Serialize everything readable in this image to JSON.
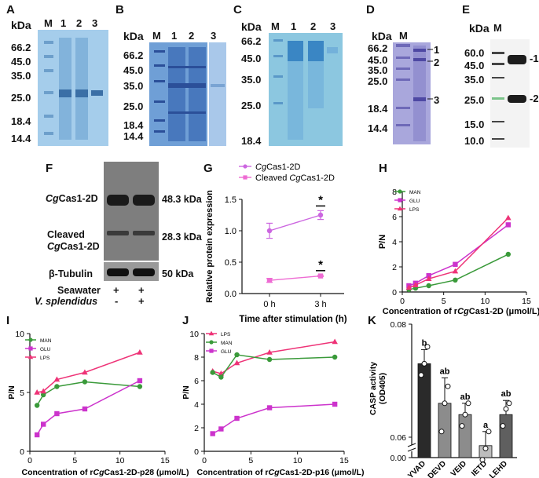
{
  "panels": {
    "A": {
      "label": "A",
      "kda": "kDa",
      "lanes": [
        "M",
        "1",
        "2",
        "3"
      ],
      "markers": [
        "66.2",
        "45.0",
        "35.0",
        "25.0",
        "18.4",
        "14.4"
      ]
    },
    "B": {
      "label": "B",
      "kda": "kDa",
      "lanes": [
        "M",
        "1",
        "2",
        "3"
      ],
      "markers": [
        "66.2",
        "45.0",
        "35.0",
        "25.0",
        "18.4",
        "14.4"
      ]
    },
    "C": {
      "label": "C",
      "kda": "kDa",
      "lanes": [
        "M",
        "1",
        "2",
        "3"
      ],
      "markers": [
        "66.2",
        "45.0",
        "35.0",
        "25.0",
        "18.4"
      ]
    },
    "D": {
      "label": "D",
      "kda": "kDa",
      "lanes": [
        "M"
      ],
      "markers": [
        "66.2",
        "45.0",
        "35.0",
        "25.0",
        "18.4",
        "14.4"
      ],
      "bands": [
        "1",
        "2",
        "3"
      ]
    },
    "E": {
      "label": "E",
      "kda": "kDa",
      "lanes": [
        "M"
      ],
      "markers": [
        "60.0",
        "45.0",
        "35.0",
        "25.0",
        "15.0",
        "10.0"
      ],
      "bands": [
        "-1",
        "-2"
      ]
    },
    "F": {
      "label": "F",
      "rows": [
        {
          "name_italic": "Cg",
          "name_rest": "Cas1-2D",
          "size": "48.3 kDa"
        },
        {
          "name_line1": "Cleaved",
          "name_line2_italic": "Cg",
          "name_line2_rest": "Cas1-2D",
          "size": "28.3 kDa"
        },
        {
          "name": "β-Tubulin",
          "size": "50 kDa"
        }
      ],
      "conditions": [
        {
          "label": "Seawater",
          "values": [
            "+",
            "+"
          ]
        },
        {
          "label": "V. splendidus",
          "values": [
            "-",
            "+"
          ]
        }
      ]
    },
    "G": {
      "label": "G"
    },
    "H": {
      "label": "H"
    },
    "I": {
      "label": "I"
    },
    "J": {
      "label": "J"
    },
    "K": {
      "label": "K"
    }
  },
  "chart_data": [
    {
      "panel": "G",
      "type": "line",
      "title": "",
      "xlabel": "Time after stimulation (h)",
      "ylabel": "Relative protein expression",
      "categories": [
        "0 h",
        "3 h"
      ],
      "ylim": [
        0,
        1.5
      ],
      "yticks": [
        "0.0",
        "0.5",
        "1.0",
        "1.5"
      ],
      "series": [
        {
          "name": "CgCas1-2D",
          "name_italic": "Cg",
          "name_rest": "Cas1-2D",
          "values": [
            1.0,
            1.25
          ],
          "errors": [
            0.12,
            0.07
          ],
          "color": "#cc66e0",
          "marker": "circle"
        },
        {
          "name": "Cleaved CgCas1-2D",
          "name_pre": "Cleaved ",
          "name_italic": "Cg",
          "name_rest": "Cas1-2D",
          "values": [
            0.21,
            0.28
          ],
          "errors": [
            0.03,
            0.01
          ],
          "color": "#ee6bd3",
          "marker": "square"
        }
      ],
      "annotations": [
        "*",
        "*"
      ]
    },
    {
      "panel": "H",
      "type": "line",
      "xlabel_pre": "Concentration of r",
      "xlabel_italic": "Cg",
      "xlabel_rest": "Cas1-2D (μmol/L)",
      "ylabel": "P/N",
      "xlim": [
        0,
        15
      ],
      "ylim": [
        0,
        8
      ],
      "xticks": [
        0,
        5,
        10,
        15
      ],
      "yticks": [
        0,
        2,
        4,
        6,
        8
      ],
      "series": [
        {
          "name": "MAN",
          "x": [
            0.8,
            1.6,
            3.2,
            6.4,
            12.8
          ],
          "values": [
            0.2,
            0.3,
            0.5,
            0.95,
            3.0
          ],
          "color": "#3a9a3a",
          "marker": "circle"
        },
        {
          "name": "GLU",
          "x": [
            0.8,
            1.6,
            3.2,
            6.4,
            12.8
          ],
          "values": [
            0.5,
            0.7,
            1.3,
            2.2,
            5.35
          ],
          "color": "#cc33cc",
          "marker": "square"
        },
        {
          "name": "LPS",
          "x": [
            0.8,
            1.6,
            3.2,
            6.4,
            12.8
          ],
          "values": [
            0.35,
            0.55,
            1.05,
            1.65,
            5.9
          ],
          "color": "#ee3377",
          "marker": "triangle"
        }
      ]
    },
    {
      "panel": "I",
      "type": "line",
      "xlabel_pre": "Concentration of r",
      "xlabel_italic": "Cg",
      "xlabel_rest": "Cas1-2D-p28 (μmol/L)",
      "ylabel": "P/N",
      "xlim": [
        0,
        15
      ],
      "ylim": [
        0,
        10
      ],
      "xticks": [
        0,
        5,
        10,
        15
      ],
      "yticks": [
        0,
        5,
        10
      ],
      "series": [
        {
          "name": "MAN",
          "x": [
            0.8,
            1.5,
            3.0,
            6.1,
            12.2
          ],
          "values": [
            3.9,
            4.8,
            5.5,
            5.9,
            5.5
          ],
          "color": "#3a9a3a",
          "marker": "circle"
        },
        {
          "name": "GLU",
          "x": [
            0.8,
            1.5,
            3.0,
            6.1,
            12.2
          ],
          "values": [
            1.4,
            2.3,
            3.2,
            3.6,
            6.0
          ],
          "color": "#cc33cc",
          "marker": "square"
        },
        {
          "name": "LPS",
          "x": [
            0.8,
            1.5,
            3.0,
            6.1,
            12.2
          ],
          "values": [
            5.0,
            5.1,
            6.1,
            6.7,
            8.4
          ],
          "color": "#ee3377",
          "marker": "triangle"
        }
      ]
    },
    {
      "panel": "J",
      "type": "line",
      "xlabel_pre": "Concentration of r",
      "xlabel_italic": "Cg",
      "xlabel_rest": "Cas1-2D-p16 (μmol/L)",
      "ylabel": "P/N",
      "xlim": [
        0,
        15
      ],
      "ylim": [
        0,
        10
      ],
      "xticks": [
        0,
        5,
        10,
        15
      ],
      "yticks": [
        0,
        2,
        4,
        6,
        8,
        10
      ],
      "series": [
        {
          "name": "LPS",
          "x": [
            0.9,
            1.8,
            3.5,
            7.0,
            14.0
          ],
          "values": [
            6.8,
            6.6,
            7.5,
            8.4,
            9.3
          ],
          "color": "#ee3377",
          "marker": "triangle"
        },
        {
          "name": "MAN",
          "x": [
            0.9,
            1.8,
            3.5,
            7.0,
            14.0
          ],
          "values": [
            6.7,
            6.3,
            8.2,
            7.8,
            8.0
          ],
          "color": "#3a9a3a",
          "marker": "circle"
        },
        {
          "name": "GLU",
          "x": [
            0.9,
            1.8,
            3.5,
            7.0,
            14.0
          ],
          "values": [
            1.5,
            1.9,
            2.8,
            3.7,
            4.0
          ],
          "color": "#cc33cc",
          "marker": "square"
        }
      ]
    },
    {
      "panel": "K",
      "type": "bar",
      "ylabel": "CASP activity (OD405)",
      "categories": [
        "YVAD",
        "DEVD",
        "VEID",
        "IETD",
        "LEHD"
      ],
      "values": [
        0.073,
        0.066,
        0.064,
        0.0585,
        0.064
      ],
      "errors": [
        0.0025,
        0.0045,
        0.002,
        0.0025,
        0.0025
      ],
      "letters": [
        "b",
        "ab",
        "ab",
        "a",
        "ab"
      ],
      "points": [
        [
          0.071,
          0.073,
          0.076
        ],
        [
          0.061,
          0.066,
          0.069
        ],
        [
          0.062,
          0.064,
          0.066
        ],
        [
          0.056,
          0.058,
          0.061
        ],
        [
          0.062,
          0.065,
          0.066
        ]
      ],
      "colors": [
        "#2a2a2a",
        "#8c8c8c",
        "#8c8c8c",
        "#bdbdbd",
        "#5f5f5f"
      ],
      "yticks": [
        "0.00",
        "0.06",
        "0.08"
      ]
    }
  ]
}
